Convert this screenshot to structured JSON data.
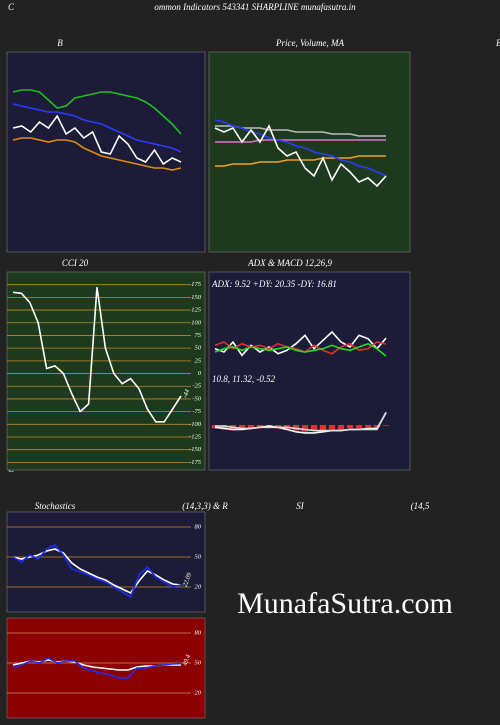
{
  "header": {
    "left": "C",
    "title": "ommon  Indicators 543341 SHARPLINE munafasutra.in",
    "edge_label": "B",
    "footer_left": "C"
  },
  "watermark": "MunafaSutra.com",
  "chart_data": [
    {
      "type": "line",
      "title": "B",
      "ylim": [
        0,
        100
      ],
      "series": [
        {
          "color": "#1fbf1f",
          "values": [
            80,
            81,
            81,
            80,
            76,
            72,
            73,
            77,
            78,
            79,
            80,
            80,
            79,
            78,
            77,
            75,
            72,
            68,
            64,
            59
          ]
        },
        {
          "color": "#2a3cff",
          "values": [
            74,
            73,
            72,
            71,
            70,
            70,
            69,
            68,
            66,
            65,
            64,
            62,
            60,
            58,
            56,
            55,
            54,
            53,
            52,
            50
          ]
        },
        {
          "color": "#e08a10",
          "values": [
            56,
            57,
            57,
            56,
            55,
            56,
            56,
            55,
            52,
            50,
            48,
            47,
            46,
            45,
            44,
            43,
            42,
            42,
            41,
            42
          ]
        },
        {
          "color": "#ffffff",
          "values": [
            62,
            63,
            60,
            65,
            62,
            68,
            59,
            62,
            57,
            60,
            50,
            49,
            58,
            54,
            47,
            45,
            51,
            44,
            47,
            45
          ]
        }
      ]
    },
    {
      "type": "line",
      "title": "Price, Volume, MA",
      "ylim": [
        0,
        100
      ],
      "series": [
        {
          "color": "#bbbbbb",
          "values": [
            63,
            63,
            63,
            62,
            62,
            62,
            61,
            61,
            61,
            60,
            60,
            60,
            60,
            59,
            59,
            59,
            58,
            58,
            58,
            58
          ]
        },
        {
          "color": "#e070d0",
          "values": [
            55,
            55,
            55,
            55,
            55,
            56,
            56,
            56,
            56,
            56,
            56,
            56,
            56,
            56,
            56,
            56,
            56,
            56,
            56,
            56
          ]
        },
        {
          "color": "#f0a020",
          "values": [
            43,
            43,
            44,
            44,
            44,
            45,
            45,
            45,
            46,
            46,
            46,
            46,
            47,
            47,
            47,
            47,
            48,
            48,
            48,
            48
          ]
        },
        {
          "color": "#2a3cff",
          "values": [
            66,
            65,
            63,
            62,
            60,
            59,
            57,
            56,
            55,
            53,
            52,
            50,
            49,
            48,
            46,
            45,
            43,
            42,
            40,
            38
          ]
        },
        {
          "color": "#ffffff",
          "values": [
            62,
            60,
            62,
            55,
            61,
            55,
            63,
            52,
            48,
            50,
            42,
            38,
            47,
            36,
            44,
            40,
            35,
            37,
            33,
            38
          ]
        }
      ]
    },
    {
      "type": "line",
      "title": "CCI 20",
      "ylim": [
        -190,
        200
      ],
      "yticks": [
        175,
        150,
        125,
        100,
        75,
        50,
        25,
        0,
        -25,
        -50,
        -75,
        -100,
        -125,
        -150,
        -175
      ],
      "grid": true,
      "series": [
        {
          "color": "#ffffff",
          "values": [
            160,
            158,
            140,
            100,
            10,
            15,
            0,
            -40,
            -75,
            -60,
            170,
            50,
            0,
            -20,
            -10,
            -30,
            -70,
            -95,
            -95,
            -70,
            -44
          ]
        }
      ]
    },
    {
      "type": "line",
      "title": "ADX  & MACD 12,26,9",
      "subtitle": "ADX: 9.52  +DY: 20.35 -DY: 16.81",
      "ylim": [
        0,
        60
      ],
      "series": [
        {
          "color": "#ffffff",
          "values": [
            14,
            12,
            18,
            10,
            16,
            12,
            15,
            11,
            13,
            17,
            22,
            14,
            19,
            24,
            18,
            15,
            22,
            20,
            14,
            20.35
          ]
        },
        {
          "color": "#e03030",
          "values": [
            16,
            18,
            14,
            17,
            15,
            16,
            14,
            17,
            15,
            14,
            12,
            16,
            13,
            11,
            15,
            17,
            13,
            14,
            18,
            16.81
          ]
        },
        {
          "color": "#22dd22",
          "values": [
            12,
            14,
            15,
            13,
            15,
            14,
            13,
            14,
            15,
            13,
            12,
            13,
            14,
            16,
            14,
            13,
            15,
            17,
            14,
            9.52
          ]
        }
      ]
    },
    {
      "type": "line",
      "subtitle": "10.8, 11.32, -0.52",
      "ylim": [
        -40,
        40
      ],
      "series": [
        {
          "color": "#e03030",
          "style": "bar",
          "values": [
            -3,
            -4,
            -5,
            -4,
            -3,
            -2,
            -2,
            -3,
            -4,
            -5,
            -6,
            -5,
            -5,
            -4,
            -4,
            -3,
            -3,
            -2,
            -2,
            -0.52
          ]
        },
        {
          "color": "#ffffff",
          "values": [
            -2,
            -3,
            -4,
            -4,
            -3,
            -2,
            -1,
            -2,
            -4,
            -6,
            -7,
            -7,
            -6,
            -5,
            -5,
            -4,
            -4,
            -3,
            -3,
            10.8
          ]
        },
        {
          "color": "#dddddd",
          "values": [
            -1,
            -1,
            -2,
            -3,
            -3,
            -2,
            -2,
            -2,
            -2,
            -3,
            -4,
            -5,
            -5,
            -5,
            -5,
            -4,
            -4,
            -4,
            -4,
            11.32
          ]
        }
      ]
    },
    {
      "type": "line",
      "title": "Stochastics",
      "subtitle": "(14,3,3) & R",
      "ylim": [
        -5,
        95
      ],
      "yticks": [
        80,
        50,
        20
      ],
      "grid": true,
      "series": [
        {
          "color": "#ffffff",
          "values": [
            50,
            48,
            50,
            52,
            56,
            58,
            54,
            44,
            38,
            34,
            30,
            27,
            22,
            18,
            14,
            26,
            36,
            32,
            27,
            23,
            22
          ]
        },
        {
          "color": "#1a2cff",
          "values": [
            50,
            45,
            52,
            48,
            58,
            62,
            52,
            38,
            35,
            32,
            28,
            25,
            20,
            15,
            10,
            32,
            40,
            30,
            25,
            20,
            22.09
          ]
        }
      ]
    },
    {
      "type": "line",
      "title": "SI",
      "subtitle": "(14,5",
      "ylim": [
        -5,
        95
      ],
      "yticks": [
        80,
        50,
        20
      ],
      "grid": true,
      "series": [
        {
          "color": "#ffffff",
          "values": [
            48,
            50,
            52,
            51,
            53,
            51,
            52,
            51,
            48,
            46,
            45,
            44,
            43,
            43,
            46,
            47,
            47,
            48,
            48,
            48
          ]
        },
        {
          "color": "#1a2cff",
          "values": [
            45,
            48,
            52,
            50,
            55,
            50,
            52,
            52,
            45,
            42,
            40,
            38,
            35,
            35,
            45,
            45,
            47,
            48,
            49,
            49.4
          ]
        }
      ]
    }
  ]
}
